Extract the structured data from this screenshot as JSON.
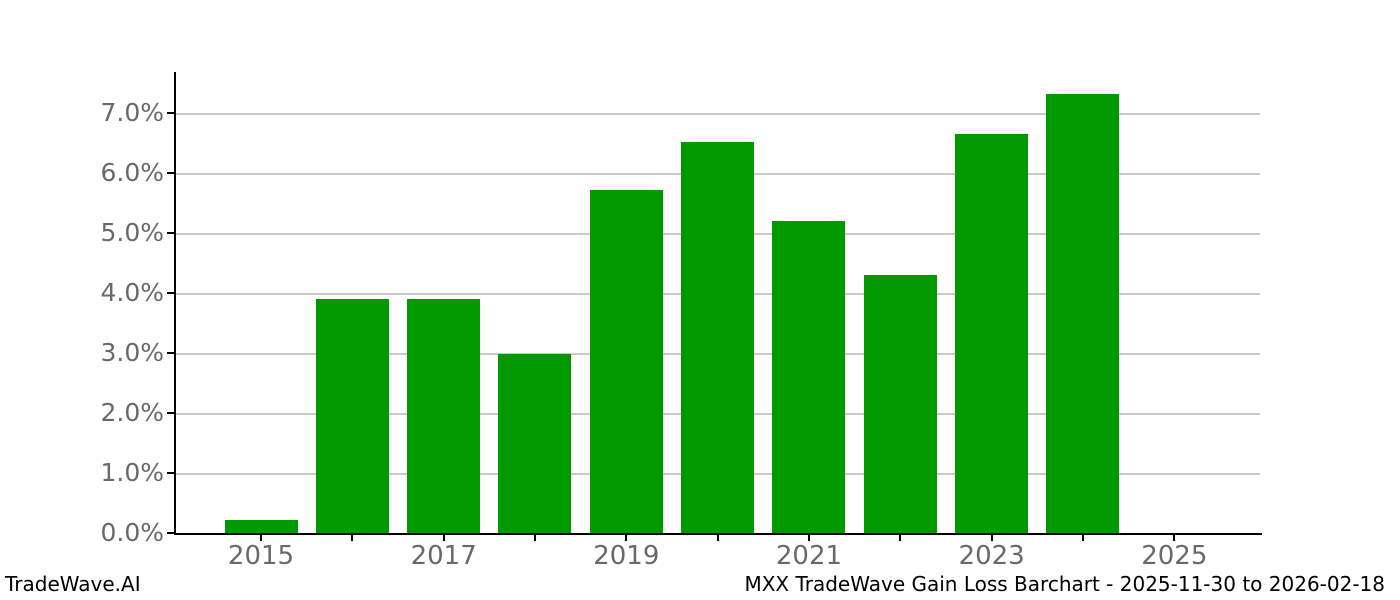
{
  "footer": {
    "watermark": "TradeWave.AI",
    "title": "MXX TradeWave Gain Loss Barchart - 2025-11-30 to 2026-02-18"
  },
  "chart_data": {
    "type": "bar",
    "title": "MXX TradeWave Gain Loss Barchart - 2025-11-30 to 2026-02-18",
    "watermark": "TradeWave.AI",
    "categories": [
      "2015",
      "2016",
      "2017",
      "2018",
      "2019",
      "2020",
      "2021",
      "2022",
      "2023",
      "2024",
      "2025"
    ],
    "values": [
      0.22,
      3.9,
      3.9,
      2.98,
      5.72,
      6.53,
      5.2,
      4.3,
      6.66,
      7.33,
      null
    ],
    "unit": "%",
    "xlabel": "",
    "ylabel": "",
    "x_tick_labels_shown": [
      "2015",
      "2017",
      "2019",
      "2021",
      "2023",
      "2025"
    ],
    "y_ticks": [
      {
        "value": 0,
        "label": "0.0%"
      },
      {
        "value": 1,
        "label": "1.0%"
      },
      {
        "value": 2,
        "label": "2.0%"
      },
      {
        "value": 3,
        "label": "3.0%"
      },
      {
        "value": 4,
        "label": "4.0%"
      },
      {
        "value": 5,
        "label": "5.0%"
      },
      {
        "value": 6,
        "label": "6.0%"
      },
      {
        "value": 7,
        "label": "7.0%"
      }
    ],
    "ylim": [
      0,
      7.69
    ],
    "grid": "horizontal",
    "legend": "none",
    "colors": {
      "bar": "#009a00",
      "axis": "#000000",
      "gridline": "#c9c9c9",
      "tick_label": "#696969",
      "footer_text": "#000000",
      "background": "#ffffff"
    }
  }
}
